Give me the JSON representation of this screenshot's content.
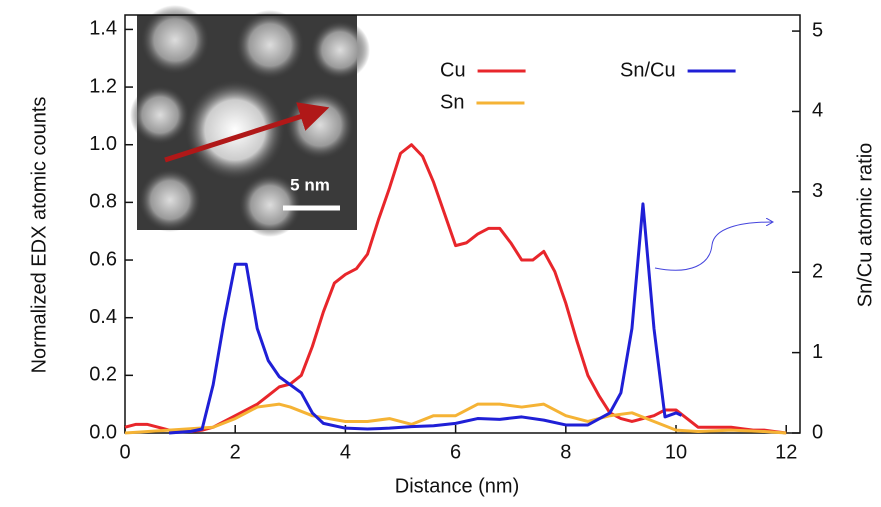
{
  "chart_data": {
    "type": "line",
    "xlabel": "Distance (nm)",
    "ylabel": "Normalized EDX atomic counts",
    "y2label": "Sn/Cu atomic ratio",
    "xlim": [
      0,
      12.25
    ],
    "xticks": [
      0,
      2,
      4,
      6,
      8,
      10,
      12
    ],
    "ylim": [
      0,
      1.45
    ],
    "yticks": [
      {
        "value": 0,
        "label": "0.0"
      },
      0.2,
      0.4,
      0.6,
      0.8,
      {
        "value": 1,
        "label": "1.0"
      },
      1.2,
      1.4
    ],
    "y2lim": [
      0,
      5.2
    ],
    "y2ticks": [
      0,
      1,
      2,
      3,
      4,
      5
    ],
    "annotations": [
      "5 nm"
    ],
    "series": [
      {
        "name": "Cu",
        "color": "#e8262b",
        "x": [
          0,
          0.2,
          0.4,
          0.6,
          0.8,
          1.0,
          1.2,
          1.4,
          1.6,
          1.8,
          2.0,
          2.2,
          2.4,
          2.6,
          2.8,
          3.0,
          3.2,
          3.4,
          3.6,
          3.8,
          4.0,
          4.2,
          4.4,
          4.6,
          4.8,
          5.0,
          5.2,
          5.4,
          5.6,
          5.8,
          6.0,
          6.2,
          6.4,
          6.6,
          6.8,
          7.0,
          7.2,
          7.4,
          7.6,
          7.8,
          8.0,
          8.2,
          8.4,
          8.6,
          8.8,
          9.0,
          9.2,
          9.4,
          9.6,
          9.8,
          10.0,
          10.2,
          10.4,
          10.6,
          10.8,
          11.0,
          11.2,
          11.4,
          11.6,
          11.8,
          12.0
        ],
        "values": [
          0.02,
          0.03,
          0.03,
          0.02,
          0.01,
          0.005,
          0.005,
          0.01,
          0.02,
          0.04,
          0.06,
          0.08,
          0.1,
          0.13,
          0.16,
          0.17,
          0.2,
          0.3,
          0.42,
          0.52,
          0.55,
          0.57,
          0.62,
          0.74,
          0.85,
          0.97,
          1.0,
          0.96,
          0.87,
          0.76,
          0.65,
          0.66,
          0.69,
          0.71,
          0.71,
          0.66,
          0.6,
          0.6,
          0.63,
          0.56,
          0.45,
          0.32,
          0.2,
          0.13,
          0.07,
          0.05,
          0.04,
          0.05,
          0.06,
          0.08,
          0.08,
          0.05,
          0.02,
          0.02,
          0.02,
          0.02,
          0.015,
          0.01,
          0.01,
          0.005,
          0
        ]
      },
      {
        "name": "Sn",
        "color": "#f5b335",
        "x": [
          0,
          1.6,
          2.0,
          2.4,
          2.8,
          3.0,
          3.4,
          4.0,
          4.4,
          4.8,
          5.2,
          5.6,
          6.0,
          6.4,
          6.8,
          7.2,
          7.6,
          8.0,
          8.4,
          8.8,
          9.2,
          9.6,
          10.0,
          10.4,
          11.0,
          11.6,
          12.0
        ],
        "values": [
          0,
          0.02,
          0.05,
          0.09,
          0.1,
          0.09,
          0.06,
          0.04,
          0.04,
          0.05,
          0.03,
          0.06,
          0.06,
          0.1,
          0.1,
          0.09,
          0.1,
          0.06,
          0.04,
          0.06,
          0.07,
          0.04,
          0.01,
          0.005,
          0.01,
          0.005,
          0
        ]
      },
      {
        "name": "Sn/Cu",
        "color": "#1f1fd6",
        "axis": "y2",
        "x": [
          0.8,
          1.2,
          1.4,
          1.6,
          1.8,
          2.0,
          2.2,
          2.4,
          2.6,
          2.8,
          3.0,
          3.2,
          3.4,
          3.6,
          4.0,
          4.4,
          4.8,
          5.2,
          5.6,
          6.0,
          6.4,
          6.8,
          7.2,
          7.6,
          8.0,
          8.4,
          8.8,
          9.0,
          9.2,
          9.4,
          9.6,
          9.8,
          10.0,
          10.1
        ],
        "values": [
          0,
          0.02,
          0.05,
          0.6,
          1.4,
          2.1,
          2.1,
          1.3,
          0.9,
          0.7,
          0.6,
          0.5,
          0.25,
          0.12,
          0.06,
          0.05,
          0.06,
          0.08,
          0.09,
          0.12,
          0.18,
          0.17,
          0.2,
          0.16,
          0.1,
          0.1,
          0.25,
          0.5,
          1.3,
          2.85,
          1.3,
          0.2,
          0.25,
          0.22
        ]
      }
    ]
  }
}
